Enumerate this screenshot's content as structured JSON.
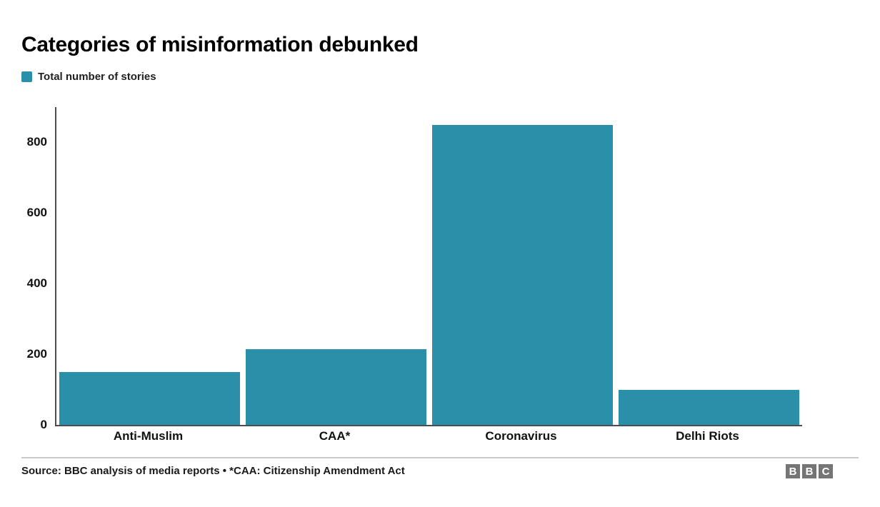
{
  "header": {
    "title": "Categories of misinformation debunked"
  },
  "legend": {
    "label": "Total number of stories",
    "swatch_color": "#2a8fa9"
  },
  "chart_data": {
    "type": "bar",
    "title": "Categories of misinformation debunked",
    "series_label": "Total number of stories",
    "categories": [
      "Anti-Muslim",
      "CAA*",
      "Coronavirus",
      "Delhi Riots"
    ],
    "values": [
      150,
      215,
      850,
      100
    ],
    "xlabel": "",
    "ylabel": "",
    "ylim": [
      0,
      900
    ],
    "yticks": [
      0,
      200,
      400,
      600,
      800
    ],
    "grid": false,
    "legend_position": "top-left",
    "bar_color": "#2a8fa9",
    "axis_color": "#4d4d4d"
  },
  "footer": {
    "source": "Source: BBC analysis of media reports • *CAA: Citizenship Amendment Act",
    "logo_letters": [
      "B",
      "B",
      "C"
    ]
  }
}
